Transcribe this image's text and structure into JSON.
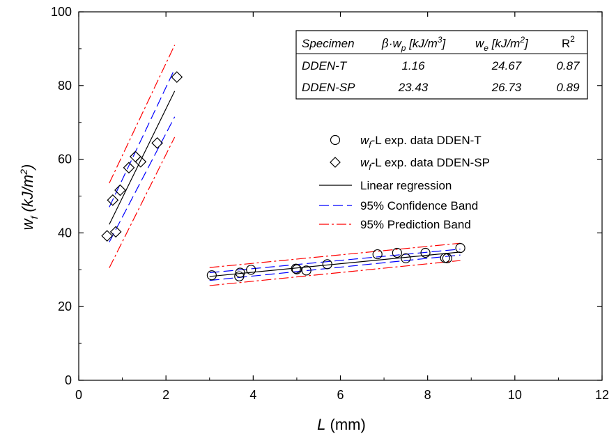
{
  "chart_data": {
    "type": "scatter",
    "xlabel": {
      "main": "L",
      "unit": "(mm)"
    },
    "ylabel": {
      "main": "w",
      "sub": "f",
      "unit": "(kJ/m",
      "sup": "2",
      "close": ")"
    },
    "xlim": [
      0,
      12
    ],
    "ylim": [
      0,
      100
    ],
    "xticks": [
      0,
      2,
      4,
      6,
      8,
      10,
      12
    ],
    "yticks": [
      0,
      20,
      40,
      60,
      80,
      100
    ],
    "grid": false,
    "series": [
      {
        "name": "wf-L exp. data DDEN-T",
        "marker": "circle",
        "points": [
          [
            3.05,
            28.5
          ],
          [
            3.68,
            28.2
          ],
          [
            3.7,
            29.2
          ],
          [
            3.95,
            30.0
          ],
          [
            4.98,
            30.3
          ],
          [
            5.0,
            30.1
          ],
          [
            5.22,
            29.8
          ],
          [
            5.7,
            31.5
          ],
          [
            6.85,
            34.2
          ],
          [
            7.3,
            34.6
          ],
          [
            7.5,
            33.1
          ],
          [
            7.95,
            34.6
          ],
          [
            8.4,
            33.2
          ],
          [
            8.45,
            33.1
          ],
          [
            8.75,
            35.9
          ]
        ]
      },
      {
        "name": "wf-L exp. data DDEN-SP",
        "marker": "diamond",
        "points": [
          [
            0.65,
            39.2
          ],
          [
            0.78,
            48.9
          ],
          [
            0.85,
            40.3
          ],
          [
            0.95,
            51.6
          ],
          [
            1.15,
            57.7
          ],
          [
            1.3,
            60.7
          ],
          [
            1.42,
            59.3
          ],
          [
            1.8,
            64.4
          ],
          [
            2.25,
            82.3
          ]
        ]
      }
    ],
    "fits": [
      {
        "group": "DDEN-T",
        "x": [
          3.0,
          8.75
        ],
        "regression": [
          28.18,
          34.81
        ],
        "confidence_upper": [
          29.2,
          35.6
        ],
        "confidence_lower": [
          27.1,
          34.0
        ],
        "prediction_upper": [
          30.6,
          37.2
        ],
        "prediction_lower": [
          25.7,
          32.5
        ]
      },
      {
        "group": "DDEN-SP",
        "x": [
          0.7,
          2.2
        ],
        "regression": [
          42.3,
          78.5
        ],
        "confidence_upper": [
          47.0,
          84.5
        ],
        "confidence_lower": [
          37.5,
          71.5
        ],
        "prediction_upper": [
          53.5,
          91.0
        ],
        "prediction_lower": [
          30.5,
          66.0
        ]
      }
    ],
    "colors": {
      "regression": "#000000",
      "confidence": "#0000ff",
      "prediction": "#ff0000",
      "marker": "#000000"
    },
    "legend": {
      "position": "right-middle",
      "entries": [
        {
          "kind": "circle",
          "prefix": "w",
          "sub": "f",
          "suffix": "-L exp. data DDEN-T"
        },
        {
          "kind": "diamond",
          "prefix": "w",
          "sub": "f",
          "suffix": "-L exp. data DDEN-SP"
        },
        {
          "kind": "solid",
          "label": "Linear regression"
        },
        {
          "kind": "dash",
          "label": "95% Confidence Band"
        },
        {
          "kind": "dashdot",
          "label": "95% Prediction Band"
        }
      ]
    },
    "table": {
      "position": "top-right",
      "headers": {
        "specimen": "Specimen",
        "bwp": {
          "beta": "β",
          "dot": "·",
          "w": "w",
          "sub": "p",
          "unit": " [kJ/m",
          "sup": "3",
          "close": "]"
        },
        "we": {
          "w": "w",
          "sub": "e",
          "unit": " [kJ/m",
          "sup": "2",
          "close": "]"
        },
        "r2": {
          "r": "R",
          "sup": "2"
        }
      },
      "rows": [
        {
          "specimen": "DDEN-T",
          "bwp": "1.16",
          "we": "24.67",
          "r2": "0.87"
        },
        {
          "specimen": "DDEN-SP",
          "bwp": "23.43",
          "we": "26.73",
          "r2": "0.89"
        }
      ]
    }
  }
}
